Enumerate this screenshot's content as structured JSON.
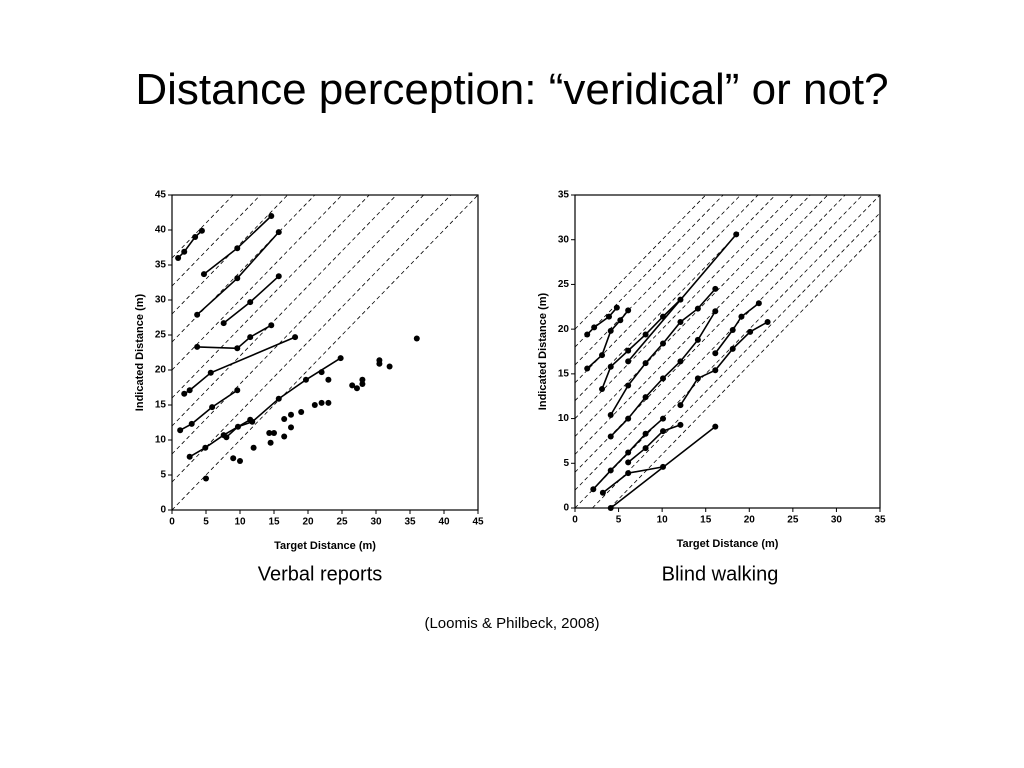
{
  "title": "Distance perception: “veridical” or not?",
  "citation": "(Loomis & Philbeck, 2008)",
  "chart_data": [
    {
      "type": "scatter",
      "caption": "Verbal reports",
      "xlabel": "Target Distance (m)",
      "ylabel": "Indicated Distance (m)",
      "xlim": [
        0,
        45
      ],
      "ylim": [
        0,
        45
      ],
      "xticks": [
        0,
        5,
        10,
        15,
        20,
        25,
        30,
        35,
        40,
        45
      ],
      "yticks": [
        0,
        5,
        10,
        15,
        20,
        25,
        30,
        35,
        40,
        45
      ],
      "reference_offsets": [
        0,
        4,
        8,
        12,
        16,
        20,
        24,
        28,
        32,
        36
      ],
      "color": "#000000",
      "series": [
        {
          "line": true,
          "x": [
            0.9,
            1.8,
            3.4,
            4.4
          ],
          "values": [
            36,
            36.9,
            39,
            39.9
          ]
        },
        {
          "line": true,
          "x": [
            4.7,
            9.6,
            14.6
          ],
          "values": [
            33.7,
            37.4,
            42
          ]
        },
        {
          "line": true,
          "x": [
            3.7,
            9.6,
            15.7
          ],
          "values": [
            27.9,
            33.1,
            39.7
          ]
        },
        {
          "line": true,
          "x": [
            7.6,
            11.5,
            15.7
          ],
          "values": [
            26.7,
            29.7,
            33.4
          ]
        },
        {
          "line": true,
          "x": [
            3.7,
            9.6,
            11.5,
            14.6
          ],
          "values": [
            23.3,
            23.1,
            24.7,
            26.4
          ]
        },
        {
          "line": true,
          "x": [
            1.8,
            2.6,
            5.7,
            18.1
          ],
          "values": [
            16.6,
            17.1,
            19.6,
            24.7
          ]
        },
        {
          "line": true,
          "x": [
            1.2,
            2.9,
            5.9,
            9.6
          ],
          "values": [
            11.4,
            12.3,
            14.7,
            17.1
          ]
        },
        {
          "line": true,
          "x": [
            8,
            9.7,
            11.8,
            15.7,
            19.7,
            24.8
          ],
          "values": [
            10.4,
            11.9,
            12.6,
            15.9,
            18.6,
            21.7
          ]
        },
        {
          "line": true,
          "x": [
            2.6,
            4.9,
            7.6,
            11.5
          ],
          "values": [
            7.6,
            8.9,
            10.7,
            12.9
          ]
        },
        {
          "line": false,
          "x": [
            5,
            9,
            10,
            12,
            14.3,
            14.5,
            15,
            16.5,
            16.5,
            17.5,
            17.5,
            19,
            21,
            22,
            23,
            22,
            23,
            26.5,
            27.2,
            28,
            28,
            30.5,
            30.5,
            32,
            36
          ],
          "values": [
            4.5,
            7.4,
            7,
            8.9,
            11,
            9.6,
            11,
            10.5,
            13,
            11.8,
            13.6,
            14,
            15,
            15.3,
            15.3,
            19.7,
            18.6,
            17.8,
            17.4,
            18.6,
            18,
            21.4,
            20.9,
            20.5,
            24.5
          ]
        }
      ]
    },
    {
      "type": "scatter",
      "caption": "Blind walking",
      "xlabel": "Target Distance (m)",
      "ylabel": "Indicated Distance (m)",
      "xlim": [
        0,
        35
      ],
      "ylim": [
        0,
        35
      ],
      "xticks": [
        0,
        5,
        10,
        15,
        20,
        25,
        30,
        35
      ],
      "yticks": [
        0,
        5,
        10,
        15,
        20,
        25,
        30,
        35
      ],
      "reference_offsets": [
        -4,
        -2,
        0,
        2,
        4,
        6,
        8,
        10,
        12,
        14,
        16,
        18,
        20
      ],
      "color": "#000000",
      "series": [
        {
          "line": true,
          "x": [
            4.1,
            16.1
          ],
          "values": [
            0,
            9.1
          ]
        },
        {
          "line": true,
          "x": [
            3.2,
            6.1,
            10.1
          ],
          "values": [
            1.7,
            3.9,
            4.6
          ]
        },
        {
          "line": true,
          "x": [
            2.1,
            4.1,
            6.1,
            8.1,
            10.1
          ],
          "values": [
            2.1,
            4.2,
            6.2,
            8.3,
            10
          ]
        },
        {
          "line": true,
          "x": [
            6.1,
            8.1,
            10.1,
            12.1
          ],
          "values": [
            5.1,
            6.7,
            8.6,
            9.3
          ]
        },
        {
          "line": true,
          "x": [
            4.1,
            6.1,
            8.1,
            10.1,
            12.1,
            14.1,
            16.1
          ],
          "values": [
            8,
            10,
            12.4,
            14.5,
            16.4,
            18.8,
            22
          ]
        },
        {
          "line": true,
          "x": [
            4.1,
            6.1,
            8.1,
            10.1,
            12.1,
            14.1,
            16.1
          ],
          "values": [
            10.4,
            13.7,
            16.2,
            18.4,
            20.8,
            22.3,
            24.5
          ]
        },
        {
          "line": true,
          "x": [
            3.1,
            4.1,
            6.1,
            8.1,
            10.1,
            12.1
          ],
          "values": [
            13.3,
            15.8,
            17.6,
            19.4,
            21.4,
            23.3
          ]
        },
        {
          "line": true,
          "x": [
            1.4,
            3.1,
            4.1,
            5.2,
            6.1
          ],
          "values": [
            15.6,
            17.1,
            19.8,
            21,
            22.1
          ]
        },
        {
          "line": true,
          "x": [
            1.4,
            2.2,
            3.9,
            4.8
          ],
          "values": [
            19.4,
            20.2,
            21.4,
            22.4
          ]
        },
        {
          "line": true,
          "x": [
            12.1,
            14.1,
            16.1,
            18.1,
            20.1,
            22.1
          ],
          "values": [
            11.5,
            14.5,
            15.4,
            17.8,
            19.7,
            20.8
          ]
        },
        {
          "line": true,
          "x": [
            16.1,
            18.1,
            19.1,
            21.1
          ],
          "values": [
            17.3,
            19.9,
            21.4,
            22.9
          ]
        },
        {
          "line": true,
          "x": [
            6.1,
            18.5
          ],
          "values": [
            16.4,
            30.6
          ]
        }
      ]
    }
  ]
}
